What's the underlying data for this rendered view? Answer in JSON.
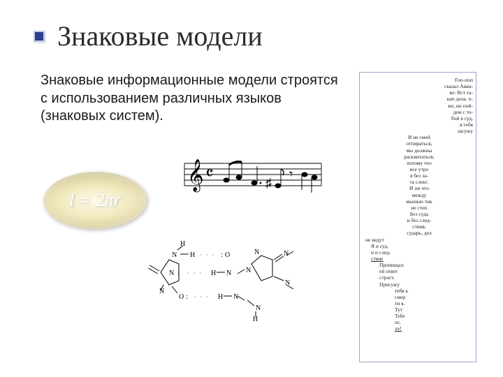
{
  "title": "Знаковые модели",
  "body": "Знаковые информационные модели строятся с использованием различных языков (знаковых систем).",
  "formula": "l = 2πr",
  "music": {
    "clef": "𝄞",
    "timesig": "𝄴",
    "sharp": "♯",
    "rest": "𝄾"
  },
  "chem": {
    "H": "H",
    "N": "N",
    "O": "O",
    "dots": "· · ·"
  },
  "poem": [
    {
      "t": "Гоп-поп",
      "cls": "t-r"
    },
    {
      "t": "сказал Аван-",
      "cls": "t-r"
    },
    {
      "t": "ко: Вст та-",
      "cls": "t-r"
    },
    {
      "t": "кие дела. п-",
      "cls": "t-r"
    },
    {
      "t": "ки, ин пой-",
      "cls": "t-r"
    },
    {
      "t": "дем с то-",
      "cls": "t-r"
    },
    {
      "t": "бой в суд,",
      "cls": "t-r"
    },
    {
      "t": "я тебя",
      "cls": "t-r"
    },
    {
      "t": "засужу",
      "cls": "t-r"
    },
    {
      "t": "И  не смей",
      "cls": "t-c"
    },
    {
      "t": "отпираться,",
      "cls": "t-c"
    },
    {
      "t": "мы должны",
      "cls": "t-c"
    },
    {
      "t": "расквитаться,",
      "cls": "t-c"
    },
    {
      "t": "потому что",
      "cls": "t-c"
    },
    {
      "t": "все утро",
      "cls": "t-c"
    },
    {
      "t": "я без за-",
      "cls": "t-c"
    },
    {
      "t": "та слон/.",
      "cls": "t-c"
    },
    {
      "t": "И ни что",
      "cls": "t-c"
    },
    {
      "t": "между",
      "cls": "t-c"
    },
    {
      "t": "мышью тик",
      "cls": "t-c"
    },
    {
      "t": "не стих",
      "cls": "t-c"
    },
    {
      "t": "Без суда",
      "cls": "t-c"
    },
    {
      "t": "и без след-",
      "cls": "t-c"
    },
    {
      "t": "ствия,",
      "cls": "t-c"
    },
    {
      "t": "сударь, дел",
      "cls": "t-c"
    },
    {
      "t": "не ведут",
      "cls": ""
    },
    {
      "t": "Я и суд,",
      "cls": "ind1"
    },
    {
      "t": "и и след-",
      "cls": "ind1"
    },
    {
      "t": "<span class='idash'>ствие</span>",
      "cls": "ind1"
    },
    {
      "t": "Пропищал:",
      "cls": "ind2"
    },
    {
      "t": "ей ответ",
      "cls": "ind2"
    },
    {
      "t": "строгт.",
      "cls": "ind2"
    },
    {
      "t": "Присужу",
      "cls": "ind2"
    },
    {
      "t": "тебя к",
      "cls": "ind3"
    },
    {
      "t": "смер",
      "cls": "ind3"
    },
    {
      "t": "ти я.",
      "cls": "ind3"
    },
    {
      "t": "Тут",
      "cls": "ind3"
    },
    {
      "t": "Тебе",
      "cls": "ind3"
    },
    {
      "t": "пг,",
      "cls": "ind3"
    },
    {
      "t": "<span class='idash'>лу!</span>",
      "cls": "ind3"
    }
  ],
  "colors": {
    "bullet_fill": "#2f3e8f",
    "bullet_border": "#c0cce8",
    "sidebar_border": "#9aa5cf",
    "text": "#1a1a1a"
  }
}
